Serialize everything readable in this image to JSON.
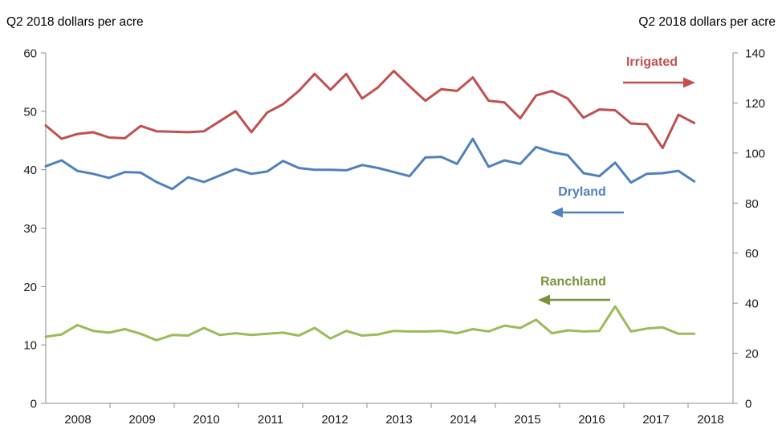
{
  "left_axis_title": "Q2 2018 dollars per acre",
  "right_axis_title": "Q2 2018 dollars per acre",
  "chart_data": {
    "type": "line",
    "title": "",
    "grid": false,
    "legend": "inline-series-labels-with-arrows",
    "n_points": 42,
    "x_frequency": "quarterly",
    "x_range_shown": [
      "2008",
      "2018"
    ],
    "x_tick_labels": [
      "2008",
      "2009",
      "2010",
      "2011",
      "2012",
      "2013",
      "2014",
      "2015",
      "2016",
      "2017",
      "2018"
    ],
    "left_axis": {
      "title": "Q2 2018 dollars per acre",
      "range": [
        0,
        60
      ],
      "tick_step": 10,
      "tick_labels": [
        "0",
        "10",
        "20",
        "30",
        "40",
        "50",
        "60"
      ]
    },
    "right_axis": {
      "title": "Q2 2018 dollars per acre",
      "range": [
        0,
        140
      ],
      "tick_step": 20,
      "tick_labels": [
        "0",
        "20",
        "40",
        "60",
        "80",
        "100",
        "120",
        "140"
      ]
    },
    "series": [
      {
        "name": "Irrigated",
        "axis": "right",
        "color": "#C0504D",
        "label_color": "#C0504D",
        "arrow_direction": "right",
        "values": [
          111.0,
          105.7,
          107.6,
          108.3,
          106.2,
          105.9,
          110.8,
          108.7,
          108.5,
          108.3,
          108.7,
          112.7,
          116.7,
          108.3,
          116.2,
          119.5,
          124.8,
          131.6,
          125.3,
          131.6,
          121.8,
          126.2,
          132.8,
          126.7,
          120.9,
          125.5,
          124.8,
          130.2,
          120.9,
          120.2,
          113.9,
          123.0,
          124.8,
          121.8,
          114.1,
          117.4,
          117.1,
          111.8,
          111.5,
          102.0,
          115.3,
          112.0
        ]
      },
      {
        "name": "Dryland",
        "axis": "left",
        "color": "#4F81BD",
        "label_color": "#4F81BD",
        "arrow_direction": "left",
        "values": [
          40.6,
          41.6,
          39.8,
          39.3,
          38.6,
          39.6,
          39.5,
          37.9,
          36.7,
          38.7,
          37.9,
          39.0,
          40.1,
          39.3,
          39.7,
          41.5,
          40.3,
          40.0,
          40.0,
          39.9,
          40.8,
          40.3,
          39.6,
          38.9,
          42.1,
          42.2,
          41.0,
          45.3,
          40.5,
          41.6,
          41.0,
          43.9,
          43.0,
          42.5,
          39.4,
          38.9,
          41.2,
          37.8,
          39.3,
          39.4,
          39.8,
          38.0
        ]
      },
      {
        "name": "Ranchland",
        "axis": "left",
        "color": "#9BBB59",
        "label_color": "#77933C",
        "arrow_direction": "left",
        "values": [
          11.4,
          11.8,
          13.4,
          12.4,
          12.1,
          12.7,
          11.9,
          10.8,
          11.7,
          11.6,
          12.9,
          11.7,
          12.0,
          11.7,
          11.9,
          12.1,
          11.6,
          12.9,
          11.1,
          12.4,
          11.6,
          11.8,
          12.4,
          12.3,
          12.3,
          12.4,
          12.0,
          12.7,
          12.3,
          13.3,
          12.9,
          14.3,
          12.0,
          12.5,
          12.3,
          12.4,
          16.6,
          12.3,
          12.8,
          13.0,
          11.9,
          11.9
        ]
      }
    ]
  }
}
